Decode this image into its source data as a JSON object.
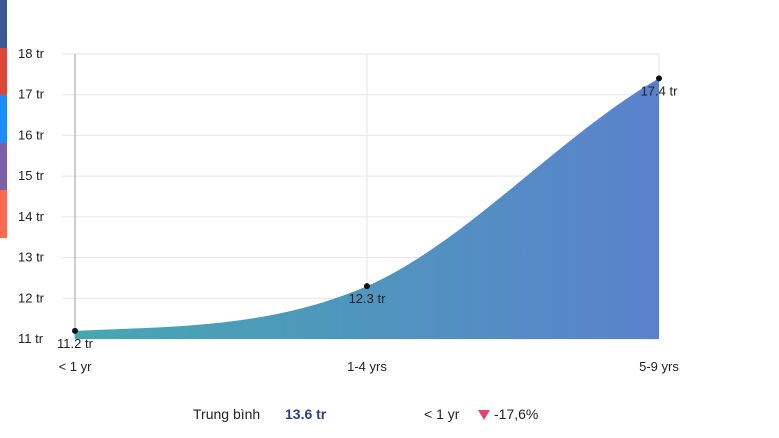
{
  "side_strip": {
    "colors": [
      "#3b5998",
      "#e0453a",
      "#1a8cff",
      "#7b5ea7",
      "#ff6a4d"
    ]
  },
  "chart_data": {
    "type": "area",
    "categories": [
      "< 1 yr",
      "1-4 yrs",
      "5-9 yrs"
    ],
    "values": [
      11.2,
      12.3,
      17.4
    ],
    "data_labels": [
      "11.2 tr",
      "12.3 tr",
      "17.4 tr"
    ],
    "ylim": [
      11,
      18
    ],
    "yticks": [
      11,
      12,
      13,
      14,
      15,
      16,
      17,
      18
    ],
    "ytick_labels": [
      "11 tr",
      "12 tr",
      "13 tr",
      "14 tr",
      "15 tr",
      "16 tr",
      "17 tr",
      "18 tr"
    ],
    "grid": true,
    "gradient": [
      "#45a8b0",
      "#5a82cc"
    ],
    "title": "",
    "xlabel": "",
    "ylabel": ""
  },
  "footer": {
    "average_label": "Trung bình",
    "average_value": "13.6 tr",
    "comparison_label": "< 1 yr",
    "comparison_icon": "triangle-down-icon",
    "comparison_value": "-17,6%",
    "comparison_color": "#e8426f"
  }
}
